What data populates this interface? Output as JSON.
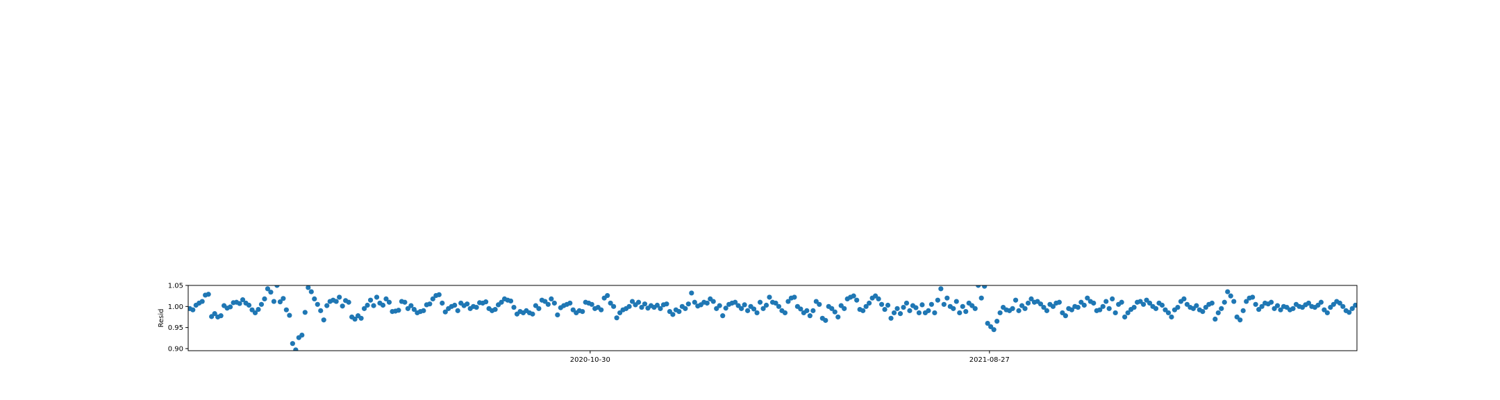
{
  "chart_data": {
    "type": "scatter",
    "title": "",
    "xlabel": "",
    "ylabel": "Resid",
    "x_start": "2020-01-01",
    "x_end": "2022-05-31",
    "ylim": [
      0.895,
      1.05
    ],
    "yticks": [
      0.9,
      0.95,
      1.0,
      1.05
    ],
    "ytick_labels": [
      "0.90",
      "0.95",
      "1.00",
      "1.05"
    ],
    "xticks": [
      "2020-10-30",
      "2021-08-27"
    ],
    "xtick_labels": [
      "2020-10-30",
      "2021-08-27"
    ],
    "grid": false,
    "marker_color": "#1f77b4",
    "series": [
      {
        "values": [
          0.995,
          0.992,
          1.003,
          1.008,
          1.012,
          1.027,
          1.029,
          0.976,
          0.983,
          0.975,
          0.978,
          1.002,
          0.996,
          0.999,
          1.009,
          1.01,
          1.007,
          1.016,
          1.008,
          1.003,
          0.992,
          0.985,
          0.993,
          1.005,
          1.018,
          1.042,
          1.034,
          1.012,
          1.05,
          1.011,
          1.019,
          0.992,
          0.979,
          0.912,
          0.897,
          0.926,
          0.932,
          0.986,
          1.045,
          1.035,
          1.018,
          1.005,
          0.99,
          0.968,
          1.002,
          1.012,
          1.015,
          1.012,
          1.022,
          1.001,
          1.014,
          1.01,
          0.975,
          0.97,
          0.978,
          0.972,
          0.995,
          1.003,
          1.015,
          1.002,
          1.022,
          1.008,
          1.003,
          1.018,
          1.01,
          0.988,
          0.989,
          0.991,
          1.012,
          1.01,
          0.995,
          1.002,
          0.993,
          0.985,
          0.988,
          0.99,
          1.004,
          1.006,
          1.018,
          1.026,
          1.028,
          1.008,
          0.987,
          0.995,
          1.0,
          1.003,
          0.99,
          1.008,
          1.002,
          1.006,
          0.995,
          1.0,
          0.998,
          1.009,
          1.008,
          1.011,
          0.995,
          0.99,
          0.993,
          1.004,
          1.01,
          1.018,
          1.015,
          1.013,
          0.998,
          0.982,
          0.988,
          0.985,
          0.99,
          0.985,
          0.982,
          1.002,
          0.995,
          1.015,
          1.012,
          1.005,
          1.018,
          1.008,
          0.98,
          0.997,
          1.002,
          1.005,
          1.008,
          0.992,
          0.985,
          0.99,
          0.988,
          1.01,
          1.008,
          1.005,
          0.995,
          0.998,
          0.992,
          1.02,
          1.026,
          1.008,
          1.0,
          0.973,
          0.985,
          0.992,
          0.995,
          1.0,
          1.012,
          1.004,
          1.01,
          0.998,
          1.006,
          0.996,
          1.002,
          0.998,
          1.003,
          0.995,
          1.004,
          1.006,
          0.988,
          0.981,
          0.992,
          0.988,
          1.0,
          0.995,
          1.006,
          1.032,
          1.01,
          1.001,
          1.004,
          1.01,
          1.008,
          1.018,
          1.012,
          0.995,
          1.002,
          0.978,
          0.996,
          1.005,
          1.008,
          1.01,
          1.002,
          0.995,
          1.004,
          0.99,
          1.0,
          0.994,
          0.985,
          1.01,
          0.995,
          1.003,
          1.022,
          1.01,
          1.008,
          1.0,
          0.99,
          0.985,
          1.012,
          1.02,
          1.022,
          1.0,
          0.994,
          0.985,
          0.99,
          0.978,
          0.99,
          1.012,
          1.005,
          0.972,
          0.967,
          1.0,
          0.995,
          0.987,
          0.975,
          1.002,
          0.995,
          1.018,
          1.022,
          1.025,
          1.015,
          0.993,
          0.99,
          1.0,
          1.008,
          1.02,
          1.025,
          1.018,
          1.005,
          0.993,
          1.003,
          0.972,
          0.985,
          0.995,
          0.983,
          0.998,
          1.008,
          0.99,
          1.002,
          0.997,
          0.985,
          1.004,
          0.985,
          0.99,
          1.005,
          0.985,
          1.015,
          1.042,
          1.005,
          1.02,
          1.0,
          0.995,
          1.012,
          0.985,
          1.0,
          0.988,
          1.008,
          1.002,
          0.995,
          1.05,
          1.02,
          1.048,
          0.96,
          0.952,
          0.945,
          0.965,
          0.985,
          0.998,
          0.992,
          0.99,
          0.995,
          1.015,
          0.99,
          1.002,
          0.995,
          1.008,
          1.018,
          1.01,
          1.012,
          1.006,
          0.998,
          0.99,
          1.005,
          1.0,
          1.008,
          1.01,
          0.985,
          0.978,
          0.995,
          0.992,
          1.0,
          0.998,
          1.01,
          1.003,
          1.02,
          1.012,
          1.008,
          0.99,
          0.992,
          1.0,
          1.012,
          0.995,
          1.018,
          0.985,
          1.005,
          1.01,
          0.975,
          0.985,
          0.993,
          0.998,
          1.01,
          1.012,
          1.005,
          1.015,
          1.008,
          1.0,
          0.995,
          1.008,
          1.003,
          0.992,
          0.985,
          0.975,
          0.992,
          0.998,
          1.012,
          1.018,
          1.005,
          0.998,
          0.995,
          1.002,
          0.992,
          0.988,
          0.998,
          1.005,
          1.008,
          0.97,
          0.985,
          0.995,
          1.01,
          1.035,
          1.025,
          1.012,
          0.975,
          0.968,
          0.99,
          1.012,
          1.02,
          1.022,
          1.005,
          0.993,
          1.0,
          1.008,
          1.006,
          1.01,
          0.995,
          1.002,
          0.992,
          1.0,
          0.998,
          0.992,
          0.995,
          1.005,
          1.0,
          0.998,
          1.004,
          1.008,
          1.0,
          0.998,
          1.003,
          1.01,
          0.992,
          0.985,
          0.998,
          1.005,
          1.012,
          1.008,
          1.0,
          0.99,
          0.986,
          0.995,
          1.003
        ]
      }
    ]
  }
}
